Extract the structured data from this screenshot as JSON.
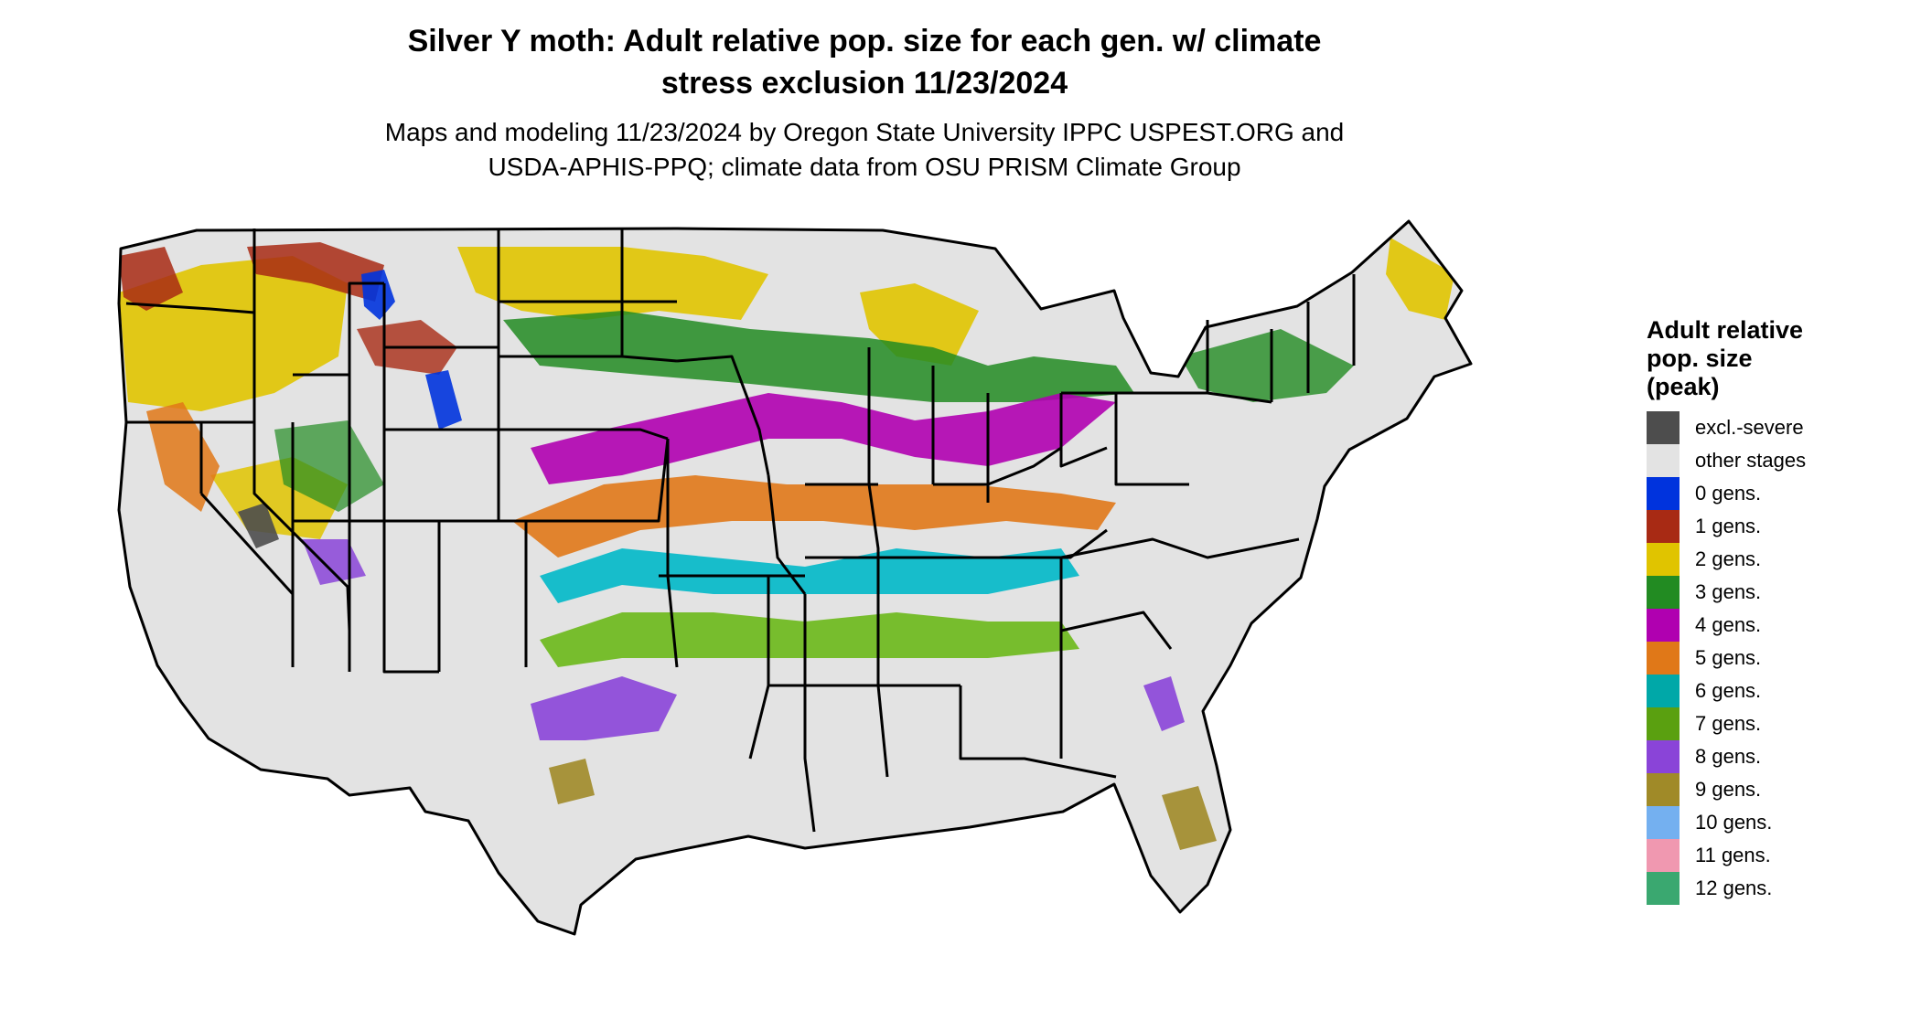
{
  "title": {
    "line1": "Silver Y moth: Adult relative pop. size for each gen. w/ climate",
    "line2": "stress exclusion 11/23/2024"
  },
  "subtitle": {
    "line1": "Maps and modeling 11/23/2024 by Oregon State University IPPC USPEST.ORG and",
    "line2": "USDA-APHIS-PPQ; climate data from OSU PRISM Climate Group"
  },
  "legend": {
    "title_line1": "Adult relative",
    "title_line2": "pop. size",
    "title_line3": "(peak)",
    "items": [
      {
        "label": "excl.-severe",
        "color": "#4d4d4d"
      },
      {
        "label": "other stages",
        "color": "#e3e3e3"
      },
      {
        "label": "0 gens.",
        "color": "#0033dd"
      },
      {
        "label": "1 gens.",
        "color": "#a82a14"
      },
      {
        "label": "2 gens.",
        "color": "#e0c400"
      },
      {
        "label": "3 gens.",
        "color": "#228b22"
      },
      {
        "label": "4 gens.",
        "color": "#b000b0"
      },
      {
        "label": "5 gens.",
        "color": "#e07818"
      },
      {
        "label": "6 gens.",
        "color": "#00a8a8"
      },
      {
        "label": "7 gens.",
        "color": "#5aa010"
      },
      {
        "label": "8 gens.",
        "color": "#8a44d8"
      },
      {
        "label": "9 gens.",
        "color": "#a08a28"
      },
      {
        "label": "10 gens.",
        "color": "#74b0f0"
      },
      {
        "label": "11 gens.",
        "color": "#f098b0"
      },
      {
        "label": "12 gens.",
        "color": "#3aa870"
      }
    ]
  }
}
